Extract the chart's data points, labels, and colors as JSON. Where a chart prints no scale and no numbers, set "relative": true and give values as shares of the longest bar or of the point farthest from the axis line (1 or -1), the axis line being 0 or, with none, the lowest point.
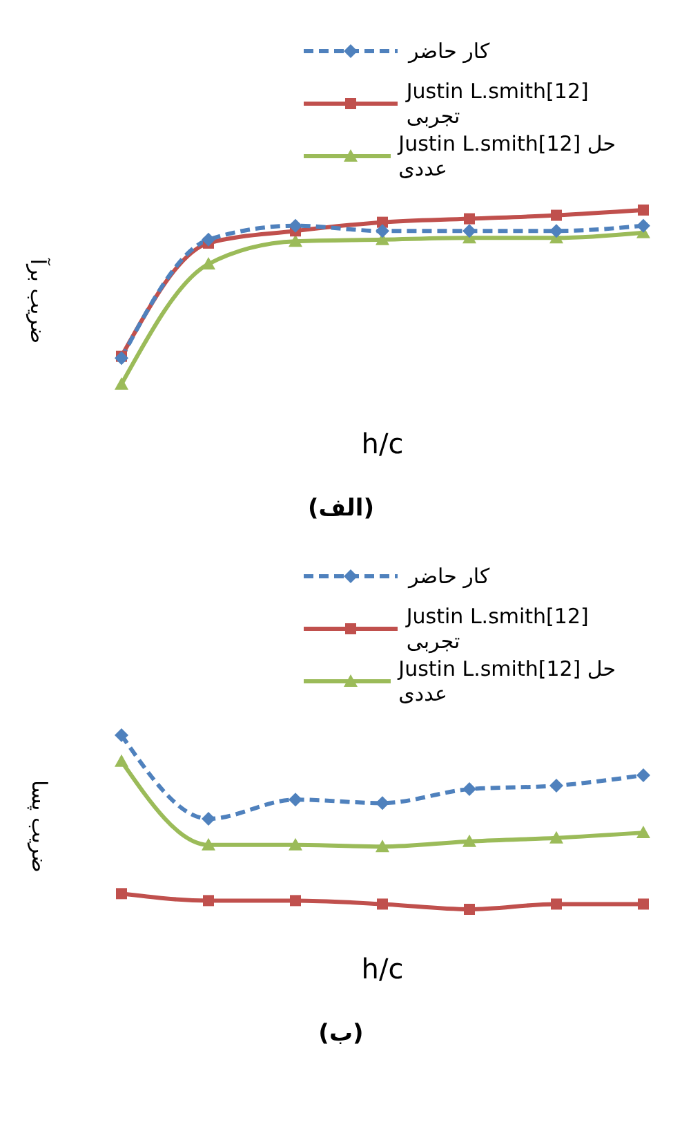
{
  "chart_data": [
    {
      "type": "line",
      "relative": true,
      "xlabel": "h/c",
      "ylabel": "ضریب برآ",
      "annotations": [
        "(الف)"
      ],
      "legend": "top",
      "categories": [
        null,
        null,
        null,
        null,
        null,
        null,
        null
      ],
      "series": [
        {
          "name": "کار حاضر",
          "color": "#4f81bd",
          "marker": "diamond",
          "line_style": "dashed",
          "values": [
            0.15,
            0.83,
            0.91,
            0.88,
            0.88,
            0.88,
            0.91
          ]
        },
        {
          "name": "Justin L.smith[12] تجربی",
          "color": "#c0504d",
          "marker": "square",
          "line_style": "solid",
          "values": [
            0.16,
            0.81,
            0.88,
            0.93,
            0.95,
            0.97,
            1
          ]
        },
        {
          "name": "Justin L.smith[12] حل عددی",
          "color": "#9bbb59",
          "marker": "triangle",
          "line_style": "solid",
          "values": [
            0,
            0.69,
            0.82,
            0.83,
            0.84,
            0.84,
            0.87
          ]
        }
      ]
    },
    {
      "type": "line",
      "relative": true,
      "xlabel": "h/c",
      "ylabel": "ضریب پسا",
      "annotations": [
        "(ب)"
      ],
      "legend": "top",
      "categories": [
        null,
        null,
        null,
        null,
        null,
        null,
        null
      ],
      "series": [
        {
          "name": "کار حاضر",
          "color": "#4f81bd",
          "marker": "diamond",
          "line_style": "dashed",
          "values": [
            1,
            0.52,
            0.63,
            0.61,
            0.69,
            0.71,
            0.77
          ]
        },
        {
          "name": "Justin L.smith[12] تجربی",
          "color": "#c0504d",
          "marker": "square",
          "line_style": "solid",
          "values": [
            0.09,
            0.05,
            0.05,
            0.03,
            0,
            0.03,
            0.03
          ]
        },
        {
          "name": "Justin L.smith[12] حل عددی",
          "color": "#9bbb59",
          "marker": "triangle",
          "line_style": "solid",
          "values": [
            0.85,
            0.37,
            0.37,
            0.36,
            0.39,
            0.41,
            0.44
          ]
        }
      ]
    }
  ]
}
